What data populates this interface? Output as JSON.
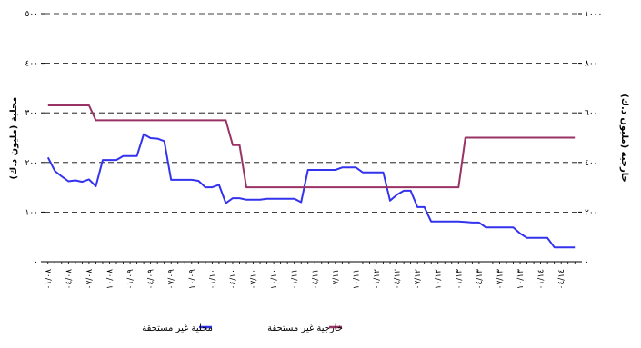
{
  "chart_data": {
    "type": "line",
    "title": "",
    "grid": true,
    "legend_position": "bottom",
    "x": [
      "٠١/٠٨",
      "٠٢/٠٨",
      "٠٣/٠٨",
      "٠٤/٠٨",
      "٠٥/٠٨",
      "٠٦/٠٨",
      "٠٧/٠٨",
      "٠٨/٠٨",
      "٠٩/٠٨",
      "١٠/٠٨",
      "١١/٠٨",
      "١٢/٠٨",
      "٠١/٠٩",
      "٠٢/٠٩",
      "٠٣/٠٩",
      "٠٤/٠٩",
      "٠٥/٠٩",
      "٠٦/٠٩",
      "٠٧/٠٩",
      "٠٨/٠٩",
      "٠٩/٠٩",
      "١٠/٠٩",
      "١١/٠٩",
      "١٢/٠٩",
      "٠١/١٠",
      "٠٢/١٠",
      "٠٣/١٠",
      "٠٤/١٠",
      "٠٥/١٠",
      "٠٦/١٠",
      "٠٧/١٠",
      "٠٨/١٠",
      "٠٩/١٠",
      "١٠/١٠",
      "١١/١٠",
      "١٢/١٠",
      "٠١/١١",
      "٠٢/١١",
      "٠٣/١١",
      "٠٤/١١",
      "٠٥/١١",
      "٠٦/١١",
      "٠٧/١١",
      "٠٨/١١",
      "٠٩/١١",
      "١٠/١١",
      "١١/١١",
      "١٢/١١",
      "٠١/١٢",
      "٠٢/١٢",
      "٠٣/١٢",
      "٠٤/١٢",
      "٠٥/١٢",
      "٠٦/١٢",
      "٠٧/١٢",
      "٠٨/١٢",
      "٠٩/١٢",
      "١٠/١٢",
      "١١/١٢",
      "١٢/١٢",
      "٠١/١٣",
      "٠٢/١٣",
      "٠٣/١٣",
      "٠٤/١٣",
      "٠٥/١٣",
      "٠٦/١٣",
      "٠٧/١٣",
      "٠٨/١٣",
      "٠٩/١٣",
      "١٠/١٣",
      "١١/١٣",
      "١٢/١٣",
      "٠١/١٤",
      "٠٢/١٤",
      "٠٣/١٤",
      "٠٤/١٤",
      "٠٥/١٤",
      "٠٦/١٤"
    ],
    "x_tick_labels": [
      "٠١/٠٨",
      "٠٤/٠٨",
      "٠٧/٠٨",
      "١٠/٠٨",
      "٠١/٠٩",
      "٠٤/٠٩",
      "٠٧/٠٩",
      "١٠/٠٩",
      "٠١/١٠",
      "٠٤/١٠",
      "٠٧/١٠",
      "١٠/١٠",
      "٠١/١١",
      "٠٤/١١",
      "٠٧/١١",
      "١٠/١١",
      "٠١/١٢",
      "٠٤/١٢",
      "٠٧/١٢",
      "١٠/١٢",
      "٠١/١٣",
      "٠٤/١٣",
      "٠٧/١٣",
      "١٠/١٣",
      "٠١/١٤",
      "٠٤/١٤"
    ],
    "y_left": {
      "label": "محلية (مليون د.ك)",
      "ylim": [
        0,
        500
      ],
      "ticks": [
        0,
        100,
        200,
        300,
        400,
        500
      ],
      "tick_labels": [
        "٠",
        "١٠٠",
        "٢٠٠",
        "٣٠٠",
        "٤٠٠",
        "٥٠٠"
      ]
    },
    "y_right": {
      "label": "خارجية (مليون د.ك)",
      "ylim": [
        0,
        1000
      ],
      "ticks": [
        0,
        200,
        400,
        600,
        800,
        1000
      ],
      "tick_labels": [
        "٠",
        "٢٠٠",
        "٤٠٠",
        "٦٠٠",
        "٨٠٠",
        "١٠٠٠"
      ]
    },
    "series": [
      {
        "name": "محلية غير مستحقة",
        "axis": "left",
        "color": "#3333ee",
        "values": [
          210,
          183,
          172,
          162,
          164,
          161,
          166,
          152,
          205,
          205,
          205,
          213,
          213,
          213,
          257,
          249,
          248,
          243,
          165,
          165,
          165,
          165,
          163,
          150,
          150,
          155,
          118,
          128,
          128,
          125,
          125,
          125,
          127,
          127,
          127,
          127,
          127,
          120,
          185,
          185,
          185,
          185,
          185,
          190,
          190,
          190,
          180,
          180,
          180,
          180,
          123,
          135,
          143,
          143,
          110,
          110,
          81,
          81,
          81,
          81,
          81,
          80,
          79,
          79,
          69,
          69,
          69,
          69,
          69,
          57,
          48,
          48,
          48,
          48,
          29,
          29,
          29,
          29
        ]
      },
      {
        "name": "خارجية غير مستحقة",
        "axis": "right",
        "color": "#993366",
        "values": [
          630,
          630,
          630,
          630,
          630,
          630,
          630,
          570,
          570,
          570,
          570,
          570,
          570,
          570,
          570,
          570,
          570,
          570,
          570,
          570,
          570,
          570,
          570,
          570,
          570,
          570,
          570,
          470,
          470,
          300,
          300,
          300,
          300,
          300,
          300,
          300,
          300,
          300,
          300,
          300,
          300,
          300,
          300,
          300,
          300,
          300,
          300,
          300,
          300,
          300,
          300,
          300,
          300,
          300,
          300,
          300,
          300,
          300,
          300,
          300,
          300,
          500,
          500,
          500,
          500,
          500,
          500,
          500,
          500,
          500,
          500,
          500,
          500,
          500,
          500,
          500,
          500,
          500
        ]
      }
    ]
  }
}
